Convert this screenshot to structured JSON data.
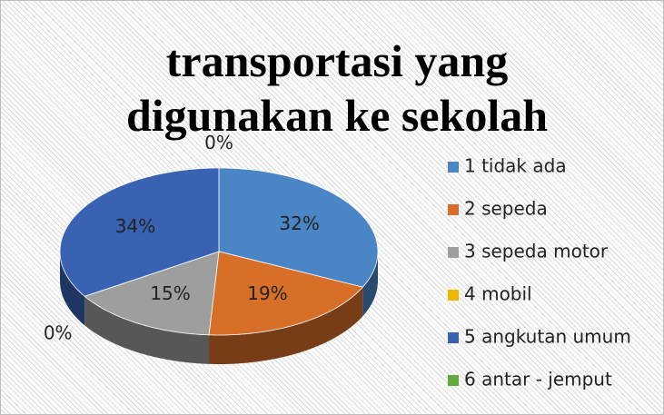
{
  "chart_data": {
    "type": "pie3d",
    "title": "transportasi yang digunakan ke sekolah",
    "categories": [
      "1 tidak ada",
      "2 sepeda",
      "3 sepeda motor",
      "4 mobil",
      "5 angkutan umum",
      "6 antar - jemput"
    ],
    "values": [
      32,
      19,
      15,
      0,
      34,
      0
    ],
    "value_labels": [
      "32%",
      "19%",
      "15%",
      "0%",
      "34%",
      "0%"
    ],
    "colors": [
      "#4a86c6",
      "#d86f28",
      "#9e9e9e",
      "#f2b600",
      "#3a62b2",
      "#62a83a"
    ],
    "legend": "right"
  }
}
